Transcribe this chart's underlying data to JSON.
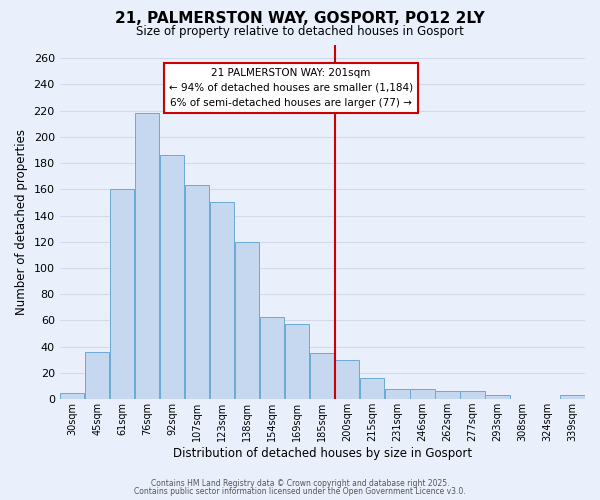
{
  "title": "21, PALMERSTON WAY, GOSPORT, PO12 2LY",
  "subtitle": "Size of property relative to detached houses in Gosport",
  "xlabel": "Distribution of detached houses by size in Gosport",
  "ylabel": "Number of detached properties",
  "bar_labels": [
    "30sqm",
    "45sqm",
    "61sqm",
    "76sqm",
    "92sqm",
    "107sqm",
    "123sqm",
    "138sqm",
    "154sqm",
    "169sqm",
    "185sqm",
    "200sqm",
    "215sqm",
    "231sqm",
    "246sqm",
    "262sqm",
    "277sqm",
    "293sqm",
    "308sqm",
    "324sqm",
    "339sqm"
  ],
  "bar_values": [
    5,
    36,
    160,
    218,
    186,
    163,
    150,
    120,
    63,
    57,
    35,
    30,
    16,
    8,
    8,
    6,
    6,
    3,
    0,
    0,
    3
  ],
  "bar_color": "#c5d8f0",
  "bar_edge_color": "#6aaad4",
  "vline_index": 11,
  "vline_color": "#cc0000",
  "annotation_title": "21 PALMERSTON WAY: 201sqm",
  "annotation_line1": "← 94% of detached houses are smaller (1,184)",
  "annotation_line2": "6% of semi-detached houses are larger (77) →",
  "ylim": [
    0,
    270
  ],
  "yticks": [
    0,
    20,
    40,
    60,
    80,
    100,
    120,
    140,
    160,
    180,
    200,
    220,
    240,
    260
  ],
  "background_color": "#eaf0fb",
  "grid_color": "#d0daea",
  "footer1": "Contains HM Land Registry data © Crown copyright and database right 2025.",
  "footer2": "Contains public sector information licensed under the Open Government Licence v3.0."
}
